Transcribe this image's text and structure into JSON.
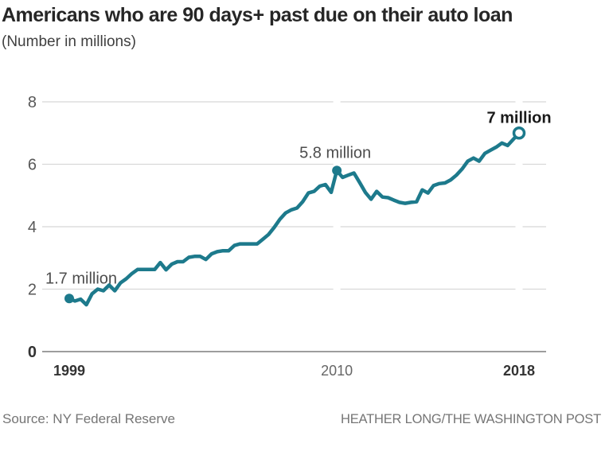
{
  "chart_data": {
    "type": "line",
    "title": "Americans who are 90 days+ past due on their auto loan",
    "subtitle": "(Number in millions)",
    "xlabel": "",
    "ylabel": "",
    "ylim": [
      0,
      8
    ],
    "yticks": [
      "0",
      "2",
      "4",
      "6",
      "8"
    ],
    "grid": "horizontal",
    "legend": "none",
    "line_color": "#1d7a8c",
    "frequency": "quarterly",
    "x_range": "1999 Q1 - 2018 Q4",
    "values": [
      1.7,
      1.62,
      1.68,
      1.5,
      1.85,
      2.0,
      1.95,
      2.13,
      1.95,
      2.2,
      2.33,
      2.5,
      2.63,
      2.63,
      2.63,
      2.63,
      2.85,
      2.62,
      2.8,
      2.88,
      2.88,
      3.02,
      3.05,
      3.05,
      2.95,
      3.13,
      3.2,
      3.23,
      3.23,
      3.4,
      3.45,
      3.45,
      3.45,
      3.45,
      3.6,
      3.75,
      3.98,
      4.24,
      4.44,
      4.54,
      4.6,
      4.8,
      5.08,
      5.13,
      5.3,
      5.35,
      5.1,
      5.8,
      5.58,
      5.65,
      5.72,
      5.42,
      5.1,
      4.88,
      5.13,
      4.95,
      4.93,
      4.85,
      4.78,
      4.75,
      4.78,
      4.8,
      5.18,
      5.08,
      5.32,
      5.38,
      5.4,
      5.5,
      5.65,
      5.85,
      6.1,
      6.2,
      6.1,
      6.35,
      6.45,
      6.55,
      6.68,
      6.6,
      6.8,
      7.0
    ],
    "xticks": [
      {
        "label": "1999",
        "index": 0,
        "bold": true
      },
      {
        "label": "2010",
        "index": 47,
        "bold": false
      },
      {
        "label": "2018",
        "index": 79,
        "bold": true
      }
    ],
    "annotations": [
      {
        "text": "1.7 million",
        "index": 0,
        "value": 1.7,
        "marker": "filled-dot",
        "bold": false
      },
      {
        "text": "5.8 million",
        "index": 47,
        "value": 5.8,
        "marker": "filled-dot",
        "bold": false
      },
      {
        "text": "7 million",
        "index": 79,
        "value": 7.0,
        "marker": "open-dot",
        "bold": true
      }
    ]
  },
  "footer": {
    "source": "Source: NY Federal Reserve",
    "credit": "HEATHER LONG/THE WASHINGTON POST"
  }
}
